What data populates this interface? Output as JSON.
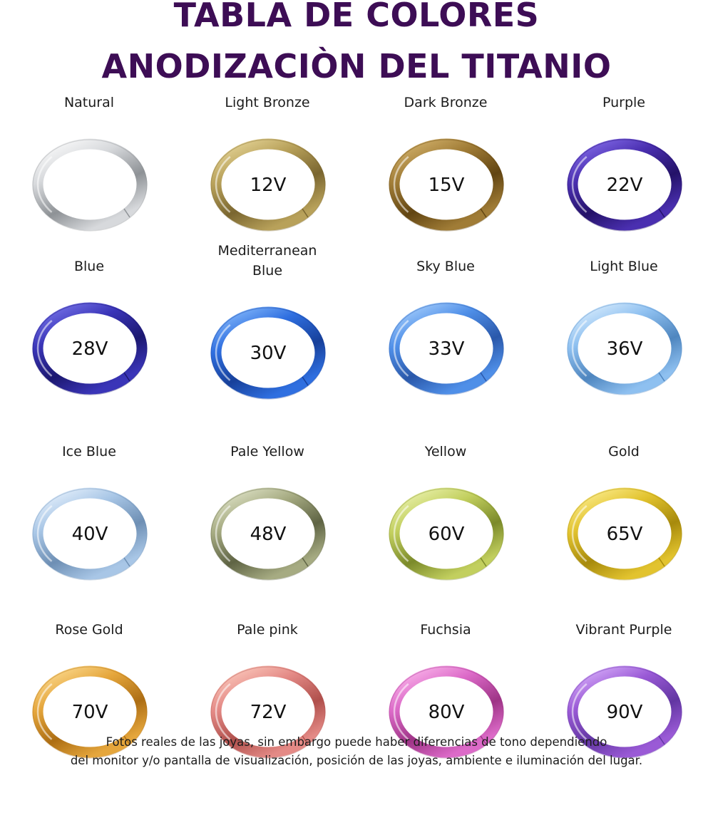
{
  "title_line1": "TABLA DE COLORES",
  "title_line2": "ANODIZACIÒN DEL TITANIO",
  "rings": [
    {
      "name": "Natural",
      "voltage": "",
      "color": "#d7d9dc",
      "light": "#ffffff",
      "dark": "#8e9296"
    },
    {
      "name": "Light Bronze",
      "voltage": "12V",
      "color": "#b8a15a",
      "light": "#ecdca0",
      "dark": "#7a6630"
    },
    {
      "name": "Dark Bronze",
      "voltage": "15V",
      "color": "#a07c36",
      "light": "#d9b872",
      "dark": "#624512"
    },
    {
      "name": "Purple",
      "voltage": "22V",
      "color": "#4a2fb0",
      "light": "#8a72f0",
      "dark": "#241268"
    },
    {
      "name": "Blue",
      "voltage": "28V",
      "color": "#3a35b8",
      "light": "#7f7cf0",
      "dark": "#1c1870"
    },
    {
      "name": "Mediterranean Blue",
      "voltage": "30V",
      "color": "#2f6fe0",
      "light": "#8fc2ff",
      "dark": "#17409a"
    },
    {
      "name": "Sky Blue",
      "voltage": "33V",
      "color": "#4f8fe8",
      "light": "#b0d6ff",
      "dark": "#2a58aa"
    },
    {
      "name": "Light Blue",
      "voltage": "36V",
      "color": "#8ec0f0",
      "light": "#e2f2ff",
      "dark": "#4f86bf"
    },
    {
      "name": "Ice Blue",
      "voltage": "40V",
      "color": "#a8c6e6",
      "light": "#eef6ff",
      "dark": "#6e8fb4"
    },
    {
      "name": "Pale Yellow",
      "voltage": "48V",
      "color": "#a6ab82",
      "light": "#e6ead0",
      "dark": "#5f6444"
    },
    {
      "name": "Yellow",
      "voltage": "60V",
      "color": "#c2cf5e",
      "light": "#f0f7b8",
      "dark": "#7b8a2a"
    },
    {
      "name": "Gold",
      "voltage": "65V",
      "color": "#e2c32e",
      "light": "#fff29a",
      "dark": "#a78a0c"
    },
    {
      "name": "Rose Gold",
      "voltage": "70V",
      "color": "#e5a63c",
      "light": "#ffe19a",
      "dark": "#ad6e14"
    },
    {
      "name": "Pale pink",
      "voltage": "72V",
      "color": "#e48a86",
      "light": "#ffd2c4",
      "dark": "#b0504c"
    },
    {
      "name": "Fuchsia",
      "voltage": "80V",
      "color": "#dc6ac8",
      "light": "#ffc0f0",
      "dark": "#9e3486"
    },
    {
      "name": "Vibrant Purple",
      "voltage": "90V",
      "color": "#9a5ad6",
      "light": "#e0b8ff",
      "dark": "#6236a2"
    }
  ],
  "footer_line1": "Fotos reales de las joyas, sin embargo puede haber diferencias de tono dependiendo",
  "footer_line2": "del monitor y/o pantalla de visualización, posición de las joyas, ambiente e iluminación del lugar."
}
